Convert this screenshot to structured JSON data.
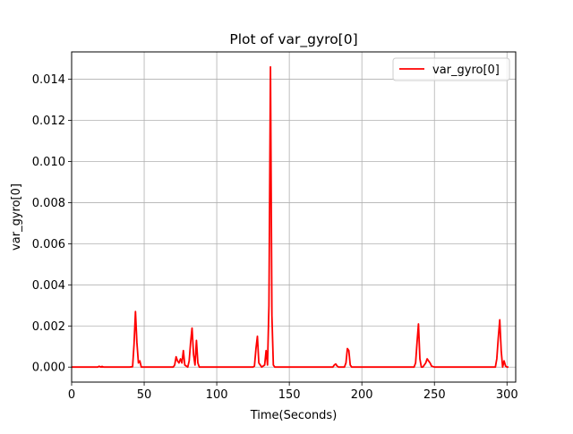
{
  "chart_data": {
    "type": "line",
    "title": "Plot of var_gyro[0]",
    "xlabel": "Time(Seconds)",
    "ylabel": "var_gyro[0]",
    "xlim": [
      0,
      306
    ],
    "ylim": [
      -0.00073,
      0.01533
    ],
    "grid": true,
    "legend_position": "upper right",
    "x_ticks": [
      0,
      50,
      100,
      150,
      200,
      250,
      300
    ],
    "x_tick_labels": [
      "0",
      "50",
      "100",
      "150",
      "200",
      "250",
      "300"
    ],
    "y_ticks": [
      0.0,
      0.002,
      0.004,
      0.006,
      0.008,
      0.01,
      0.012,
      0.014
    ],
    "y_tick_labels": [
      "0.000",
      "0.002",
      "0.004",
      "0.006",
      "0.008",
      "0.010",
      "0.012",
      "0.014"
    ],
    "series": [
      {
        "name": "var_gyro[0]",
        "color": "#ff0000",
        "x": [
          0,
          18,
          19,
          20,
          21,
          22,
          23,
          40,
          42,
          43,
          44,
          45,
          46,
          47,
          48,
          70,
          71,
          72,
          73,
          74,
          75,
          76,
          77,
          78,
          80,
          81,
          82,
          83,
          84,
          85,
          86,
          87,
          88,
          125,
          126,
          127,
          128,
          129,
          131,
          133,
          134,
          135,
          136,
          137,
          138,
          139,
          140,
          180,
          181,
          182,
          183,
          184,
          188,
          189,
          190,
          191,
          192,
          193,
          236,
          237,
          238,
          239,
          240,
          241,
          242,
          243,
          244,
          245,
          246,
          247,
          248,
          250,
          292,
          293,
          294,
          295,
          296,
          297,
          298,
          299,
          300,
          301
        ],
        "y": [
          0,
          0,
          4e-05,
          0,
          3e-05,
          0,
          0,
          0,
          2e-05,
          0.0011,
          0.0027,
          0.0012,
          0.0002,
          0.0003,
          0,
          0,
          0.0001,
          0.0005,
          0.0003,
          0.0002,
          0.0004,
          0.0002,
          0.0008,
          0.0001,
          0,
          0.0003,
          0.0012,
          0.0019,
          0.0006,
          0.0001,
          0.0013,
          0.0002,
          0,
          0,
          5e-05,
          0.0009,
          0.0015,
          0.0002,
          0,
          0.0001,
          0.0008,
          0.0001,
          0.003,
          0.0146,
          0.0025,
          0.0001,
          0,
          0,
          0.0001,
          0.00015,
          5e-05,
          0,
          0,
          0.0002,
          0.0009,
          0.0008,
          0.0001,
          0,
          0,
          0.0002,
          0.0012,
          0.0021,
          0.0004,
          0,
          0,
          0.0001,
          0.0002,
          0.0004,
          0.0003,
          0.0002,
          5e-05,
          0,
          0,
          0.0004,
          0.0014,
          0.0023,
          0.0008,
          0,
          0.0003,
          5e-05,
          0,
          0
        ]
      }
    ]
  }
}
